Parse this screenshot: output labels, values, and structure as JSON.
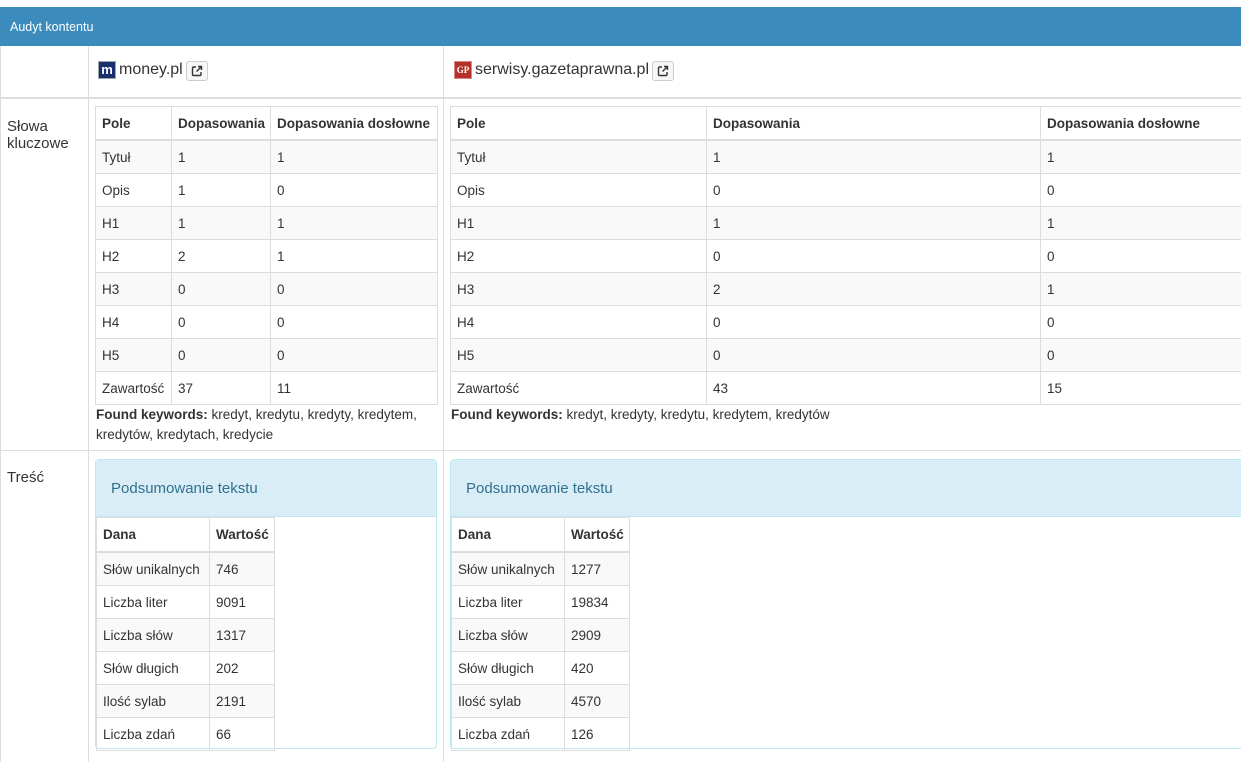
{
  "header": {
    "title": "Audyt kontentu"
  },
  "row_labels": {
    "keywords": "Słowa kluczowe",
    "content": "Treść"
  },
  "sites": [
    {
      "name": "money.pl",
      "favicon": "m",
      "columns": [
        "Pole",
        "Dopasowania",
        "Dopasowania dosłowne"
      ],
      "keyword_rows": [
        {
          "field": "Tytuł",
          "matches": "1",
          "exact": "1"
        },
        {
          "field": "Opis",
          "matches": "1",
          "exact": "0"
        },
        {
          "field": "H1",
          "matches": "1",
          "exact": "1"
        },
        {
          "field": "H2",
          "matches": "2",
          "exact": "1"
        },
        {
          "field": "H3",
          "matches": "0",
          "exact": "0"
        },
        {
          "field": "H4",
          "matches": "0",
          "exact": "0"
        },
        {
          "field": "H5",
          "matches": "0",
          "exact": "0"
        },
        {
          "field": "Zawartość",
          "matches": "37",
          "exact": "11"
        }
      ],
      "found_label": "Found keywords:",
      "found_keywords": "kredyt, kredytu, kredyty, kredytem, kredytów, kredytach, kredycie",
      "summary": {
        "title": "Podsumowanie tekstu",
        "columns": [
          "Dana",
          "Wartość"
        ],
        "rows": [
          {
            "label": "Słów unikalnych",
            "value": "746"
          },
          {
            "label": "Liczba liter",
            "value": "9091"
          },
          {
            "label": "Liczba słów",
            "value": "1317"
          },
          {
            "label": "Słów długich",
            "value": "202"
          },
          {
            "label": "Ilość sylab",
            "value": "2191"
          },
          {
            "label": "Liczba zdań",
            "value": "66"
          }
        ]
      }
    },
    {
      "name": "serwisy.gazetaprawna.pl",
      "favicon": "GP",
      "columns": [
        "Pole",
        "Dopasowania",
        "Dopasowania dosłowne"
      ],
      "keyword_rows": [
        {
          "field": "Tytuł",
          "matches": "1",
          "exact": "1"
        },
        {
          "field": "Opis",
          "matches": "0",
          "exact": "0"
        },
        {
          "field": "H1",
          "matches": "1",
          "exact": "1"
        },
        {
          "field": "H2",
          "matches": "0",
          "exact": "0"
        },
        {
          "field": "H3",
          "matches": "2",
          "exact": "1"
        },
        {
          "field": "H4",
          "matches": "0",
          "exact": "0"
        },
        {
          "field": "H5",
          "matches": "0",
          "exact": "0"
        },
        {
          "field": "Zawartość",
          "matches": "43",
          "exact": "15"
        }
      ],
      "found_label": "Found keywords:",
      "found_keywords": "kredyt, kredyty, kredytu, kredytem, kredytów",
      "summary": {
        "title": "Podsumowanie tekstu",
        "columns": [
          "Dana",
          "Wartość"
        ],
        "rows": [
          {
            "label": "Słów unikalnych",
            "value": "1277"
          },
          {
            "label": "Liczba liter",
            "value": "19834"
          },
          {
            "label": "Liczba słów",
            "value": "2909"
          },
          {
            "label": "Słów długich",
            "value": "420"
          },
          {
            "label": "Ilość sylab",
            "value": "4570"
          },
          {
            "label": "Liczba zdań",
            "value": "126"
          }
        ]
      }
    }
  ]
}
